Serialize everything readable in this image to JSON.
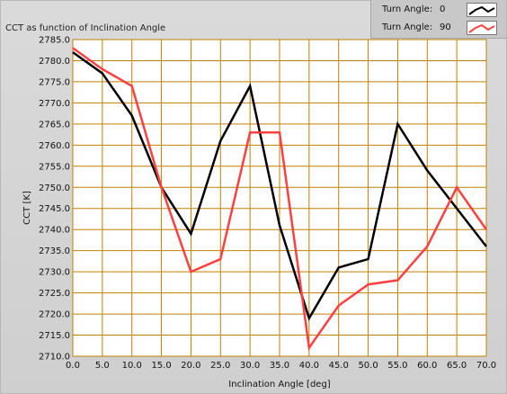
{
  "chart_data": {
    "type": "line",
    "title": "CCT as function of Inclination Angle",
    "xlabel": "Inclination Angle [deg]",
    "ylabel": "CCT [K]",
    "xlim": [
      0,
      70
    ],
    "ylim": [
      2710,
      2785
    ],
    "xticks": [
      "0.0",
      "5.0",
      "10.0",
      "15.0",
      "20.0",
      "25.0",
      "30.0",
      "35.0",
      "40.0",
      "45.0",
      "50.0",
      "55.0",
      "60.0",
      "65.0",
      "70.0"
    ],
    "yticks": [
      "2710.0",
      "2715.0",
      "2720.0",
      "2725.0",
      "2730.0",
      "2735.0",
      "2740.0",
      "2745.0",
      "2750.0",
      "2755.0",
      "2760.0",
      "2765.0",
      "2770.0",
      "2775.0",
      "2780.0",
      "2785.0"
    ],
    "grid": true,
    "legend_position": "top-right",
    "x": [
      0,
      5,
      10,
      15,
      20,
      25,
      30,
      35,
      40,
      45,
      50,
      55,
      60,
      65,
      70
    ],
    "series": [
      {
        "name": "Turn Angle:",
        "turn_angle": "0",
        "color": "#000000",
        "values": [
          2782,
          2777,
          2767,
          2750,
          2739,
          2761,
          2774,
          2741,
          2719,
          2731,
          2733,
          2765,
          2754,
          2745,
          2736
        ]
      },
      {
        "name": "Turn Angle:",
        "turn_angle": "90",
        "color": "#ff4040",
        "values": [
          2783,
          2778,
          2774,
          2750,
          2730,
          2733,
          2763,
          2763,
          2712,
          2722,
          2727,
          2728,
          2736,
          2750,
          2740
        ]
      }
    ]
  },
  "colors": {
    "plot_background": "#ffffff",
    "grid": "#c08000",
    "frame_background": "#d4d4d4"
  }
}
